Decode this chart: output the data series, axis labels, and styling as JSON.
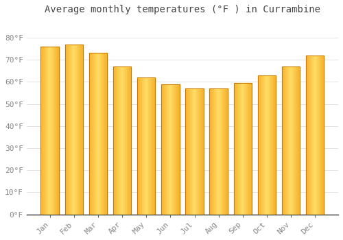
{
  "title": "Average monthly temperatures (°F ) in Currambine",
  "months": [
    "Jan",
    "Feb",
    "Mar",
    "Apr",
    "May",
    "Jun",
    "Jul",
    "Aug",
    "Sep",
    "Oct",
    "Nov",
    "Dec"
  ],
  "values": [
    76.0,
    77.0,
    73.0,
    67.0,
    62.0,
    59.0,
    57.0,
    57.0,
    59.5,
    63.0,
    67.0,
    72.0
  ],
  "bar_color_center": "#FFCC44",
  "bar_color_edge": "#F5A000",
  "background_color": "#FFFFFF",
  "grid_color": "#DDDDDD",
  "ylim": [
    0,
    88
  ],
  "yticks": [
    0,
    10,
    20,
    30,
    40,
    50,
    60,
    70,
    80
  ],
  "title_fontsize": 10,
  "tick_fontsize": 8,
  "tick_color": "#888888",
  "title_color": "#444444",
  "bar_width": 0.75
}
